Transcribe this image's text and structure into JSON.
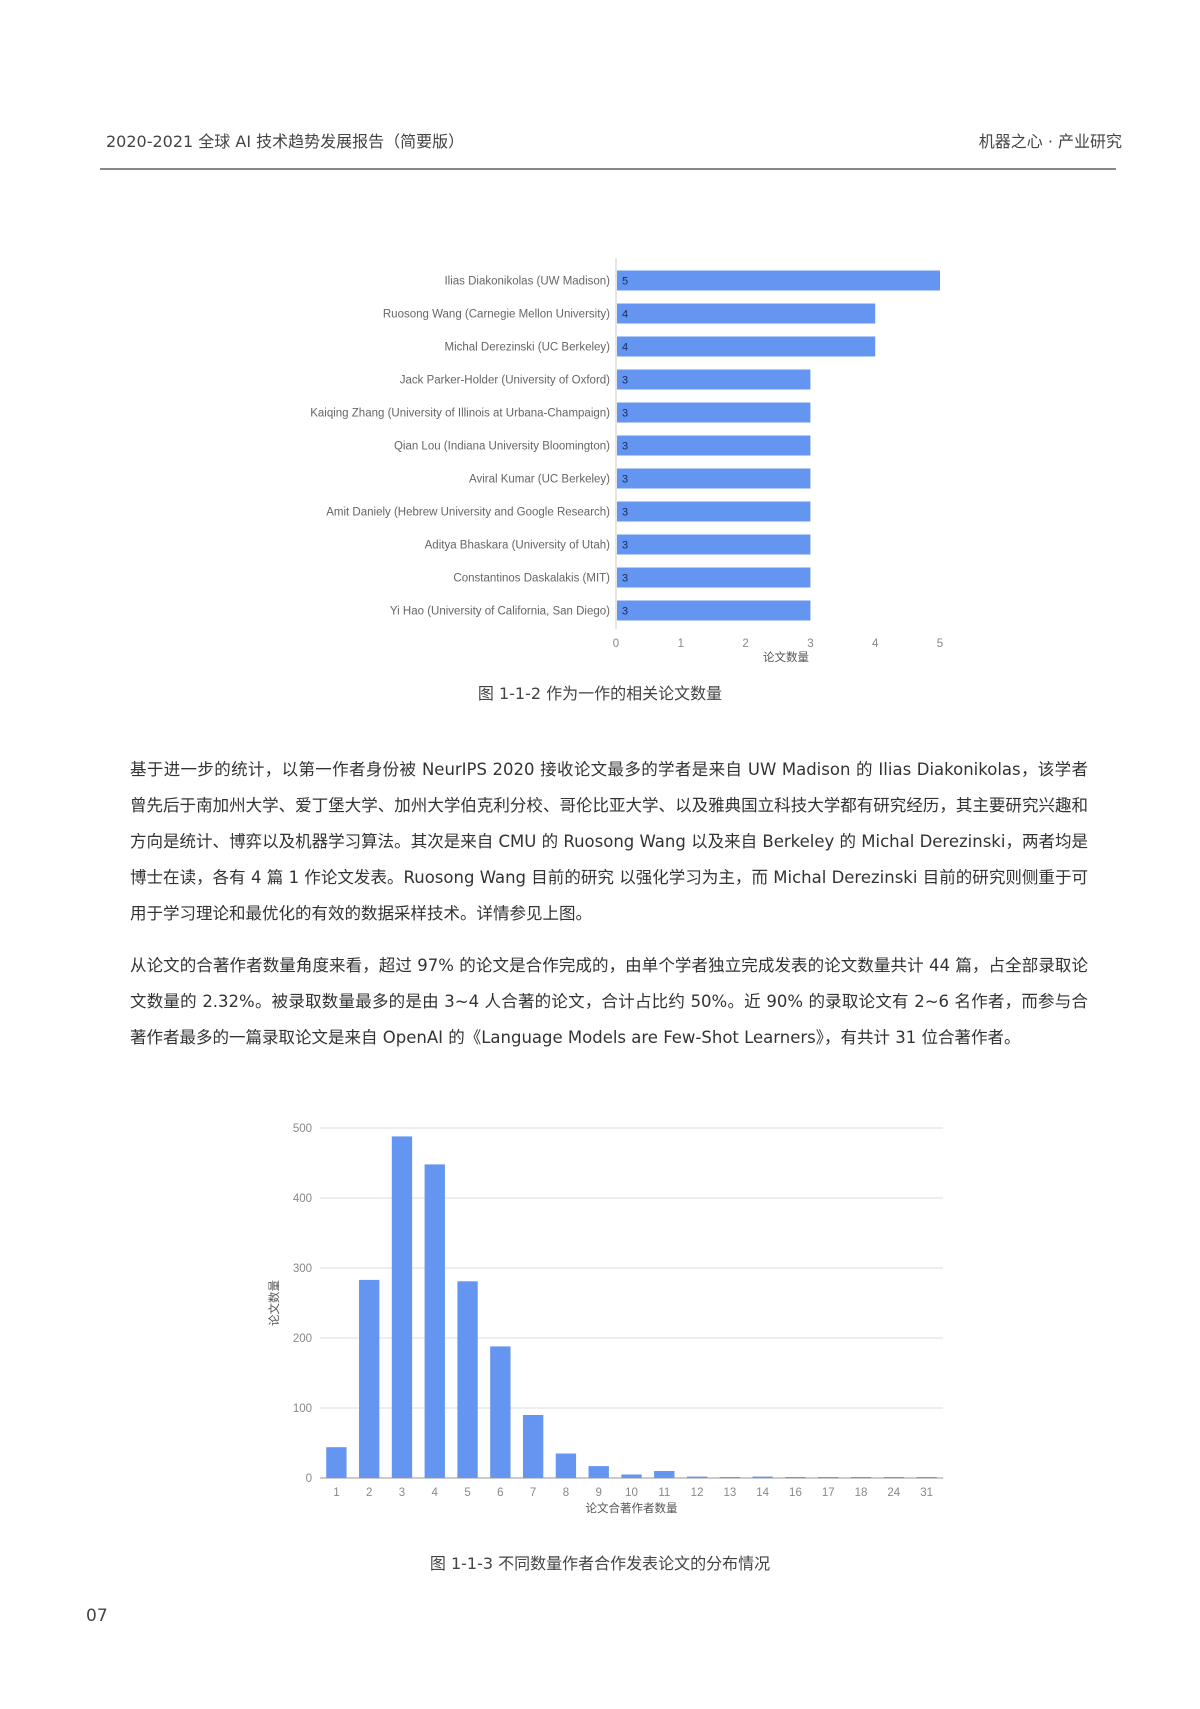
{
  "header": {
    "title": "2020-2021 全球 AI 技术趋势发展报告（简要版）",
    "publisher": "机器之心 · 产业研究"
  },
  "figure1": {
    "caption": "图 1-1-2 作为一作的相关论文数量"
  },
  "figure2": {
    "caption": "图 1-1-3 不同数量作者合作发表论文的分布情况"
  },
  "paragraphs": [
    "基于进一步的统计，以第一作者身份被 NeurIPS 2020 接收论文最多的学者是来自 UW Madison 的 Ilias Diakonikolas，该学者曾先后于南加州大学、爱丁堡大学、加州大学伯克利分校、哥伦比亚大学、以及雅典国立科技大学都有研究经历，其主要研究兴趣和方向是统计、博弈以及机器学习算法。其次是来自 CMU 的 Ruosong Wang 以及来自 Berkeley 的 Michal Derezinski，两者均是博士在读，各有 4 篇 1 作论文发表。Ruosong Wang 目前的研究 以强化学习为主，而 Michal Derezinski 目前的研究则侧重于可用于学习理论和最优化的有效的数据采样技术。详情参见上图。",
    "从论文的合著作者数量角度来看，超过 97% 的论文是合作完成的，由单个学者独立完成发表的论文数量共计 44 篇，占全部录取论文数量的 2.32%。被录取数量最多的是由 3~4 人合著的论文，合计占比约 50%。近 90% 的录取论文有 2~6 名作者，而参与合著作者最多的一篇录取论文是来自 OpenAI 的《Language Models are Few-Shot Learners》，有共计 31 位合著作者。"
  ],
  "page_number": "07",
  "chart_data": [
    {
      "type": "bar",
      "orientation": "horizontal",
      "categories": [
        "Ilias Diakonikolas (UW Madison)",
        "Ruosong Wang (Carnegie Mellon University)",
        "Michal Derezinski (UC Berkeley)",
        "Jack Parker-Holder (University of Oxford)",
        "Kaiqing Zhang (University of Illinois at Urbana-Champaign)",
        "Qian Lou (Indiana University Bloomington)",
        "Aviral Kumar (UC Berkeley)",
        "Amit Daniely (Hebrew University and Google Research)",
        "Aditya Bhaskara (University of Utah)",
        "Constantinos Daskalakis (MIT)",
        "Yi Hao (University of California, San Diego)"
      ],
      "values": [
        5,
        4,
        4,
        3,
        3,
        3,
        3,
        3,
        3,
        3,
        3
      ],
      "data_labels": true,
      "xlabel": "论文数量",
      "ylabel": "",
      "xlim": [
        0,
        5
      ],
      "xticks": [
        "0",
        "1",
        "2",
        "3",
        "4",
        "5"
      ],
      "grid": false,
      "bar_color": "#6495f0"
    },
    {
      "type": "bar",
      "categories": [
        "1",
        "2",
        "3",
        "4",
        "5",
        "6",
        "7",
        "8",
        "9",
        "10",
        "11",
        "12",
        "13",
        "14",
        "16",
        "17",
        "18",
        "24",
        "31"
      ],
      "values": [
        44,
        283,
        488,
        448,
        281,
        188,
        90,
        35,
        17,
        5,
        10,
        2,
        1,
        2,
        1,
        1,
        1,
        1,
        1
      ],
      "xlabel": "论文合著作者数量",
      "ylabel": "论文数量",
      "ylim": [
        0,
        500
      ],
      "yticks": [
        "0",
        "100",
        "200",
        "300",
        "400",
        "500"
      ],
      "grid": true,
      "bar_color": "#6495f0"
    }
  ]
}
